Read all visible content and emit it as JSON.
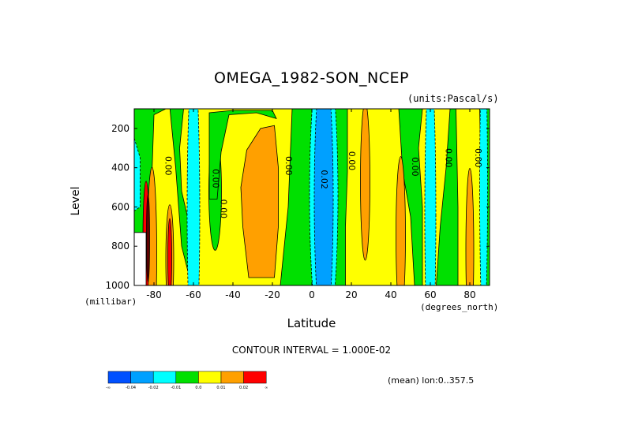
{
  "chart_data": {
    "type": "heatmap",
    "title": "OMEGA_1982-SON_NCEP",
    "units": "(units:Pascal/s)",
    "xlabel": "Latitude",
    "x_unit": "(degrees_north)",
    "ylabel": "Level",
    "y_unit": "(millibar)",
    "xlim": [
      -90,
      90
    ],
    "ylim": [
      1000,
      100
    ],
    "x_ticks": [
      -80,
      -60,
      -40,
      -20,
      0,
      20,
      40,
      60,
      80
    ],
    "x_tick_labels": [
      "-80",
      "-60",
      "-40",
      "-20",
      "0",
      "20",
      "40",
      "60",
      "80"
    ],
    "y_ticks": [
      200,
      400,
      600,
      800,
      1000
    ],
    "y_tick_labels": [
      "200",
      "400",
      "600",
      "800",
      "1000"
    ],
    "contour_interval": "CONTOUR INTERVAL = 1.000E-02",
    "mean_note": "(mean) lon:0..357.5",
    "contour_labels": [
      {
        "text": "0.00",
        "lat": -73,
        "level": 390
      },
      {
        "text": "0.00",
        "lat": -49,
        "level": 455
      },
      {
        "text": "0.00",
        "lat": -45,
        "level": 610
      },
      {
        "text": "0.00",
        "lat": -12,
        "level": 390
      },
      {
        "text": "0.02",
        "lat": 6,
        "level": 460
      },
      {
        "text": "0.00",
        "lat": 20,
        "level": 365
      },
      {
        "text": "0.00",
        "lat": 52,
        "level": 395
      },
      {
        "text": "0.00",
        "lat": 69,
        "level": 350
      },
      {
        "text": "0.00",
        "lat": 84,
        "level": 350
      }
    ],
    "colorbar": {
      "colors": [
        "#0050ff",
        "#00a0ff",
        "#00ffff",
        "#00e000",
        "#ffff00",
        "#ffa000",
        "#ff0000"
      ],
      "labels": [
        "-∞",
        "-0.04",
        "-0.02",
        "-0.01",
        "0.0",
        "0.01",
        "0.02",
        "∞"
      ]
    },
    "colors": {
      "background": "#00e000",
      "yellow": "#ffff00",
      "orange": "#ffa000",
      "red": "#ff0000",
      "cyan": "#00ffff",
      "blue": "#00a0ff",
      "dark": "#600000"
    }
  }
}
